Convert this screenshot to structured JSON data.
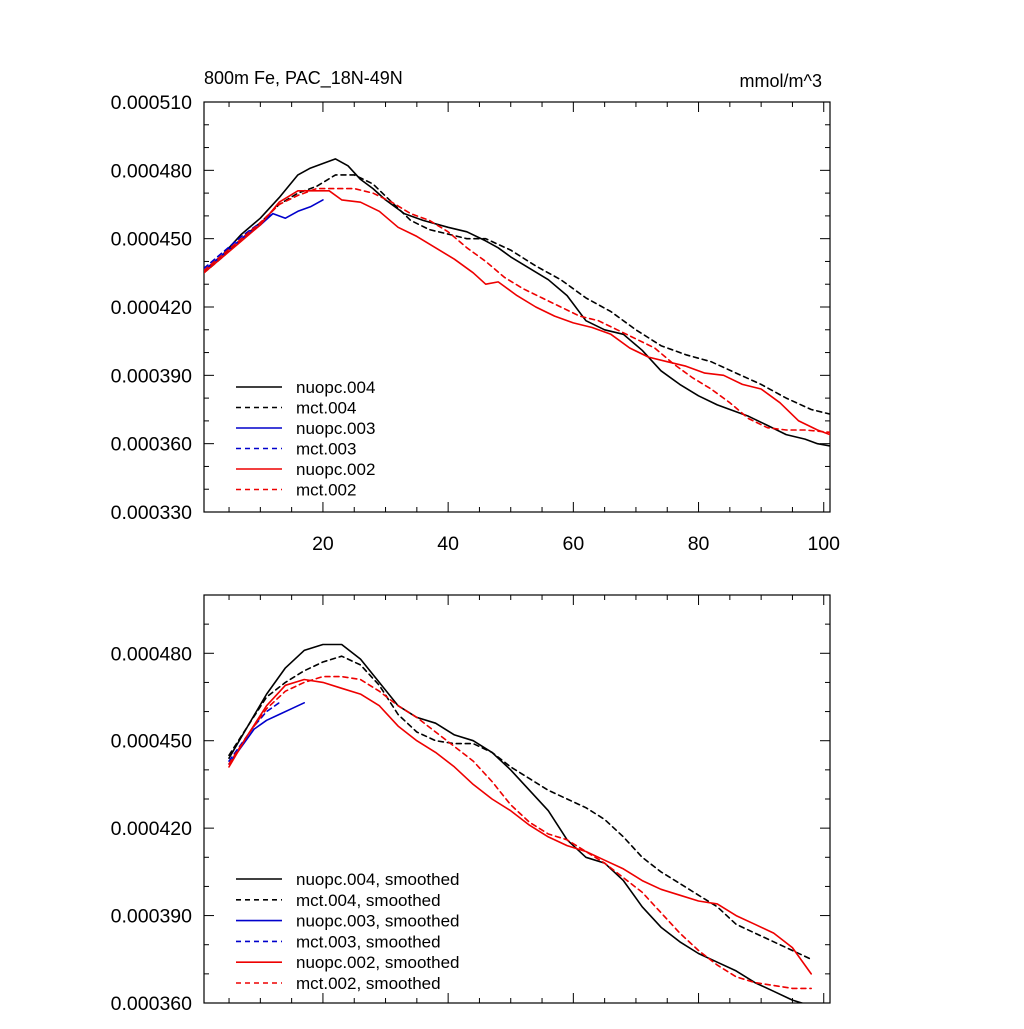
{
  "chart_data": [
    {
      "type": "line",
      "title": "800m Fe, PAC_18N-49N",
      "units": "mmol/m^3",
      "xlim": [
        1,
        101
      ],
      "ylim": [
        0.00033,
        0.00051
      ],
      "xticks": [
        20,
        40,
        60,
        80,
        100
      ],
      "xtick_labels": [
        "20",
        "40",
        "60",
        "80",
        "100"
      ],
      "yticks": [
        0.00033,
        0.00036,
        0.00039,
        0.00042,
        0.00045,
        0.00048,
        0.00051
      ],
      "ytick_labels": [
        "0.000330",
        "0.000360",
        "0.000390",
        "0.000420",
        "0.000450",
        "0.000480",
        "0.000510"
      ],
      "legend_position": "bottom-left",
      "series": [
        {
          "name": "nuopc.004",
          "color": "#000000",
          "dash": "solid",
          "x": [
            1,
            4,
            7,
            10,
            13,
            16,
            18,
            20,
            22,
            24,
            26,
            28,
            30,
            33,
            36,
            40,
            43,
            46,
            48,
            50,
            53,
            56,
            59,
            62,
            65,
            68,
            71,
            74,
            77,
            80,
            83,
            86,
            88,
            91,
            94,
            97,
            99,
            101
          ],
          "y": [
            0.000436,
            0.000443,
            0.000452,
            0.000459,
            0.000468,
            0.000478,
            0.000481,
            0.000483,
            0.000485,
            0.000482,
            0.000476,
            0.000472,
            0.000467,
            0.000461,
            0.000458,
            0.000455,
            0.000453,
            0.000449,
            0.000446,
            0.000442,
            0.000437,
            0.000432,
            0.000425,
            0.000414,
            0.00041,
            0.000408,
            0.000401,
            0.000392,
            0.000386,
            0.000381,
            0.000377,
            0.000374,
            0.000372,
            0.000368,
            0.000364,
            0.000362,
            0.00036,
            0.000359
          ]
        },
        {
          "name": "mct.004",
          "color": "#000000",
          "dash": "dashed",
          "x": [
            1,
            4,
            7,
            10,
            13,
            16,
            19,
            22,
            25,
            28,
            31,
            34,
            37,
            40,
            43,
            46,
            50,
            54,
            58,
            62,
            66,
            70,
            74,
            78,
            82,
            86,
            90,
            94,
            98,
            101
          ],
          "y": [
            0.000435,
            0.000442,
            0.00045,
            0.000457,
            0.000465,
            0.00047,
            0.000473,
            0.000478,
            0.000478,
            0.000474,
            0.000466,
            0.000458,
            0.000454,
            0.000452,
            0.00045,
            0.00045,
            0.000445,
            0.000438,
            0.000432,
            0.000424,
            0.000418,
            0.00041,
            0.000403,
            0.000399,
            0.000396,
            0.000391,
            0.000386,
            0.00038,
            0.000375,
            0.000373
          ]
        },
        {
          "name": "nuopc.003",
          "color": "#0000cc",
          "dash": "solid",
          "x": [
            1,
            4,
            7,
            10,
            12,
            14,
            16,
            18,
            20
          ],
          "y": [
            0.000436,
            0.000443,
            0.00045,
            0.000456,
            0.000461,
            0.000459,
            0.000462,
            0.000464,
            0.000467
          ]
        },
        {
          "name": "mct.003",
          "color": "#0000cc",
          "dash": "dashed",
          "x": [
            1,
            4,
            7,
            10,
            12
          ],
          "y": [
            0.000437,
            0.000444,
            0.000451,
            0.000457,
            0.000461
          ]
        },
        {
          "name": "nuopc.002",
          "color": "#ee0000",
          "dash": "solid",
          "x": [
            1,
            4,
            7,
            10,
            13,
            16,
            19,
            21,
            23,
            26,
            29,
            32,
            35,
            38,
            41,
            44,
            46,
            48,
            51,
            54,
            57,
            60,
            63,
            66,
            69,
            72,
            75,
            78,
            81,
            84,
            87,
            90,
            93,
            96,
            99,
            101
          ],
          "y": [
            0.000435,
            0.000442,
            0.000449,
            0.000456,
            0.000466,
            0.000471,
            0.000471,
            0.000471,
            0.000467,
            0.000466,
            0.000462,
            0.000455,
            0.000451,
            0.000446,
            0.000441,
            0.000435,
            0.00043,
            0.000431,
            0.000425,
            0.00042,
            0.000416,
            0.000413,
            0.000411,
            0.000408,
            0.000402,
            0.000398,
            0.000396,
            0.000394,
            0.000391,
            0.00039,
            0.000386,
            0.000384,
            0.000378,
            0.00037,
            0.000366,
            0.000364
          ]
        },
        {
          "name": "mct.002",
          "color": "#ee0000",
          "dash": "dashed",
          "x": [
            1,
            4,
            7,
            10,
            13,
            16,
            19,
            22,
            25,
            28,
            31,
            34,
            37,
            40,
            43,
            46,
            49,
            52,
            55,
            58,
            61,
            64,
            67,
            70,
            73,
            76,
            79,
            82,
            85,
            88,
            91,
            94,
            97,
            101
          ],
          "y": [
            0.000436,
            0.000443,
            0.00045,
            0.000457,
            0.000465,
            0.000469,
            0.000472,
            0.000472,
            0.000472,
            0.00047,
            0.000466,
            0.000461,
            0.000458,
            0.000453,
            0.000446,
            0.00044,
            0.000433,
            0.000428,
            0.000424,
            0.00042,
            0.000416,
            0.000414,
            0.00041,
            0.000406,
            0.000402,
            0.000395,
            0.000389,
            0.000384,
            0.000378,
            0.000371,
            0.000367,
            0.000366,
            0.000366,
            0.000365
          ]
        }
      ]
    },
    {
      "type": "line",
      "title": "",
      "units": "",
      "xlim": [
        1,
        101
      ],
      "ylim": [
        0.00036,
        0.0005
      ],
      "xticks": [
        20,
        40,
        60,
        80,
        100
      ],
      "xtick_labels": [],
      "yticks": [
        0.00036,
        0.00039,
        0.00042,
        0.00045,
        0.00048
      ],
      "ytick_labels": [
        "0.000360",
        "0.000390",
        "0.000420",
        "0.000450",
        "0.000480"
      ],
      "legend_position": "bottom-left",
      "series": [
        {
          "name": "nuopc.004, smoothed",
          "color": "#000000",
          "dash": "solid",
          "x": [
            5,
            8,
            11,
            14,
            17,
            20,
            23,
            26,
            29,
            32,
            35,
            38,
            41,
            44,
            47,
            50,
            53,
            56,
            59,
            62,
            65,
            68,
            71,
            74,
            77,
            80,
            83,
            86,
            89,
            92,
            95,
            98
          ],
          "y": [
            0.000444,
            0.000455,
            0.000466,
            0.000475,
            0.000481,
            0.000483,
            0.000483,
            0.000478,
            0.00047,
            0.000462,
            0.000458,
            0.000456,
            0.000452,
            0.00045,
            0.000446,
            0.00044,
            0.000433,
            0.000426,
            0.000416,
            0.00041,
            0.000408,
            0.000402,
            0.000393,
            0.000386,
            0.000381,
            0.000377,
            0.000374,
            0.000371,
            0.000367,
            0.000364,
            0.000361,
            0.000359
          ]
        },
        {
          "name": "mct.004, smoothed",
          "color": "#000000",
          "dash": "dashed",
          "x": [
            5,
            8,
            11,
            14,
            17,
            20,
            23,
            26,
            29,
            32,
            35,
            38,
            41,
            44,
            47,
            50,
            53,
            56,
            59,
            62,
            65,
            68,
            71,
            74,
            77,
            80,
            83,
            86,
            89,
            92,
            95,
            98
          ],
          "y": [
            0.000445,
            0.000455,
            0.000465,
            0.00047,
            0.000474,
            0.000477,
            0.000479,
            0.000476,
            0.000469,
            0.000459,
            0.000453,
            0.00045,
            0.000449,
            0.000449,
            0.000446,
            0.000441,
            0.000437,
            0.000433,
            0.00043,
            0.000427,
            0.000423,
            0.000417,
            0.00041,
            0.000405,
            0.000401,
            0.000397,
            0.000393,
            0.000387,
            0.000384,
            0.000381,
            0.000378,
            0.000375
          ]
        },
        {
          "name": "nuopc.003, smoothed",
          "color": "#0000cc",
          "dash": "solid",
          "x": [
            5,
            7,
            9,
            11,
            13,
            15,
            17
          ],
          "y": [
            0.000442,
            0.000448,
            0.000454,
            0.000457,
            0.000459,
            0.000461,
            0.000463
          ]
        },
        {
          "name": "mct.003, smoothed",
          "color": "#0000cc",
          "dash": "dashed",
          "x": [
            5,
            7,
            9,
            11,
            13
          ],
          "y": [
            0.000443,
            0.000449,
            0.000455,
            0.00046,
            0.000463
          ]
        },
        {
          "name": "nuopc.002, smoothed",
          "color": "#ee0000",
          "dash": "solid",
          "x": [
            5,
            8,
            11,
            14,
            17,
            20,
            23,
            26,
            29,
            32,
            35,
            38,
            41,
            44,
            47,
            50,
            53,
            56,
            59,
            62,
            65,
            68,
            71,
            74,
            77,
            80,
            83,
            86,
            89,
            92,
            95,
            98
          ],
          "y": [
            0.000441,
            0.000452,
            0.000462,
            0.000469,
            0.000471,
            0.00047,
            0.000468,
            0.000466,
            0.000462,
            0.000455,
            0.00045,
            0.000446,
            0.000441,
            0.000435,
            0.00043,
            0.000426,
            0.000421,
            0.000417,
            0.000414,
            0.000412,
            0.000409,
            0.000406,
            0.000402,
            0.000399,
            0.000397,
            0.000395,
            0.000394,
            0.00039,
            0.000387,
            0.000384,
            0.000379,
            0.00037
          ]
        },
        {
          "name": "mct.002, smoothed",
          "color": "#ee0000",
          "dash": "dashed",
          "x": [
            5,
            8,
            11,
            14,
            17,
            20,
            23,
            26,
            29,
            32,
            35,
            38,
            41,
            44,
            47,
            50,
            53,
            56,
            59,
            62,
            65,
            68,
            71,
            74,
            77,
            80,
            83,
            86,
            89,
            92,
            95,
            98
          ],
          "y": [
            0.000442,
            0.000452,
            0.000461,
            0.000467,
            0.00047,
            0.000472,
            0.000472,
            0.000471,
            0.000467,
            0.000462,
            0.000458,
            0.000453,
            0.000448,
            0.000443,
            0.000436,
            0.000428,
            0.000422,
            0.000418,
            0.000416,
            0.000412,
            0.000408,
            0.000403,
            0.000398,
            0.000391,
            0.000384,
            0.000378,
            0.000373,
            0.000369,
            0.000367,
            0.000366,
            0.000365,
            0.000365
          ]
        }
      ]
    }
  ]
}
